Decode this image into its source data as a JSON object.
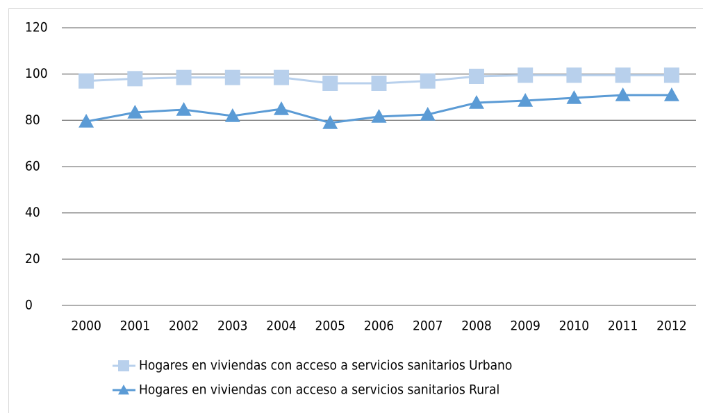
{
  "chart_data": {
    "type": "line",
    "categories": [
      "2000",
      "2001",
      "2002",
      "2003",
      "2004",
      "2005",
      "2006",
      "2007",
      "2008",
      "2009",
      "2010",
      "2011",
      "2012"
    ],
    "series": [
      {
        "name": "Hogares en viviendas con acceso a servicios sanitarios Urbano",
        "color": "#b8d0ec",
        "marker": "square",
        "values": [
          97,
          98,
          98.5,
          98.5,
          98.5,
          96,
          96,
          97,
          99,
          99.5,
          99.5,
          99.5,
          99.5
        ]
      },
      {
        "name": "Hogares en viviendas con acceso a servicios sanitarios Rural",
        "color": "#5b9bd5",
        "marker": "triangle",
        "values": [
          79.5,
          83.4,
          84.6,
          81.9,
          84.9,
          78.9,
          81.6,
          82.5,
          87.6,
          88.5,
          89.7,
          90.9,
          90.9
        ]
      }
    ],
    "ylim": [
      0,
      120
    ],
    "yticks": [
      0,
      20,
      40,
      60,
      80,
      100,
      120
    ],
    "grid": true,
    "legend": "bottom"
  }
}
